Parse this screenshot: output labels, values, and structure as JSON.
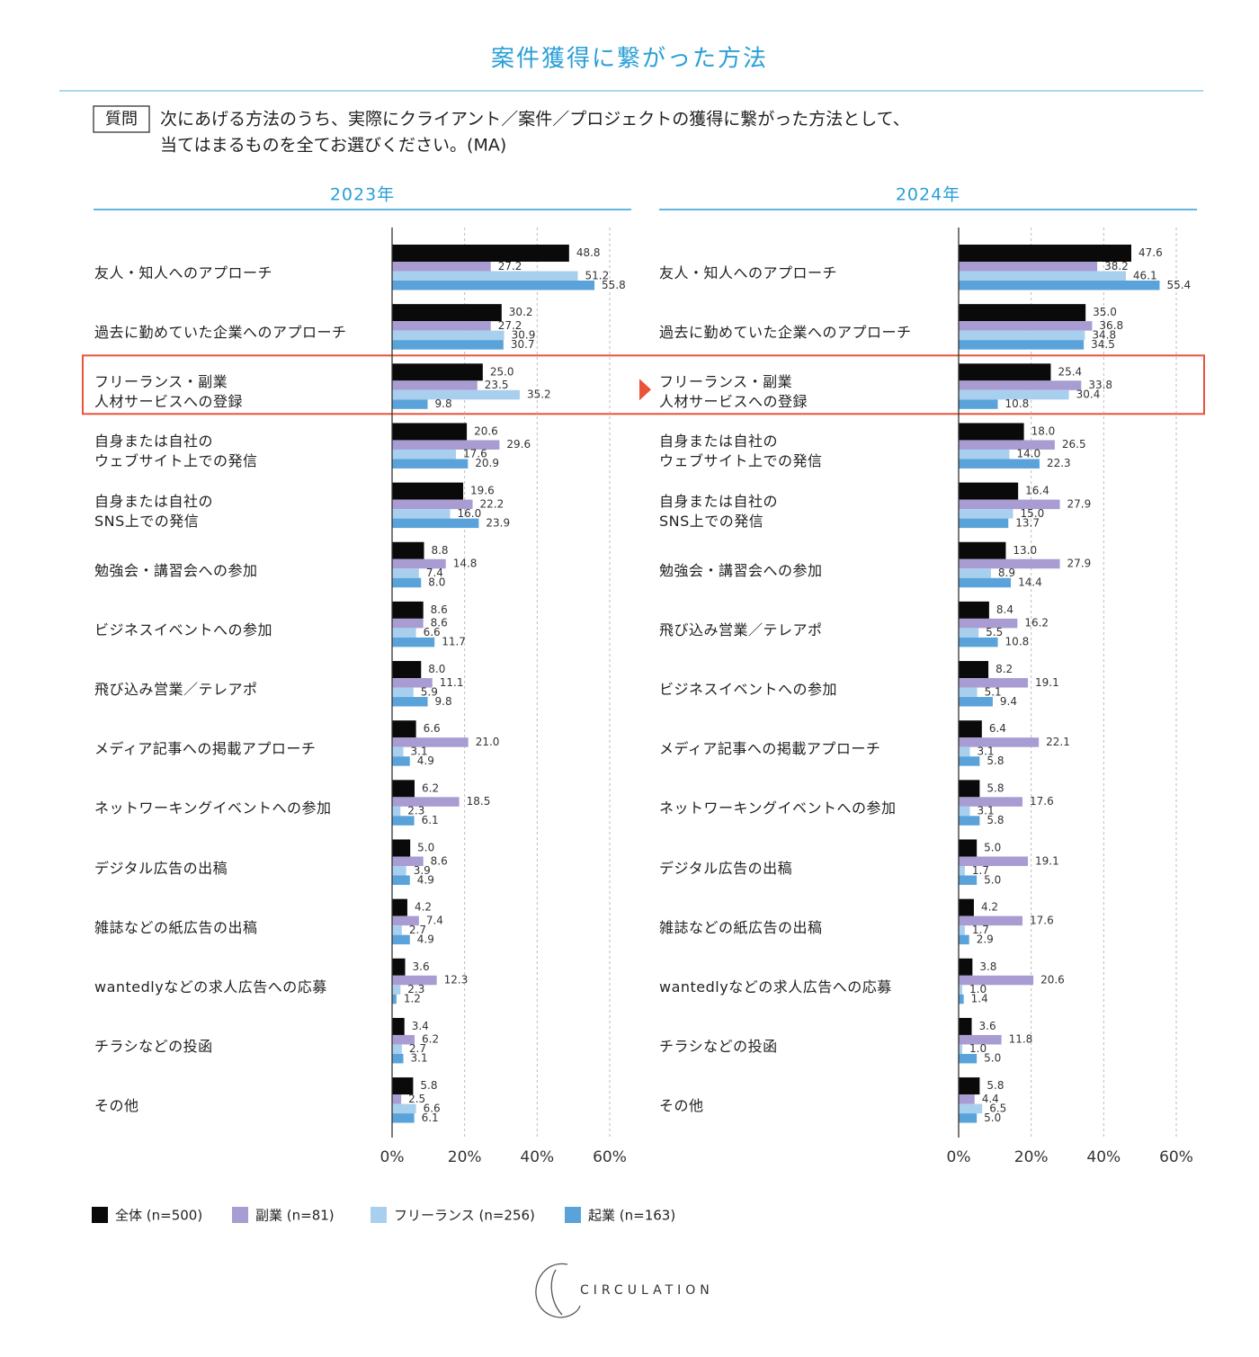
{
  "title": "案件獲得に繋がった方法",
  "question": {
    "label": "質問",
    "lines": [
      "次にあげる方法のうち、実際にクライアント／案件／プロジェクトの獲得に繋がった方法として、",
      "当てはまるものを全てお選びください。(MA)"
    ]
  },
  "highlight_index": 2,
  "logo": "CIRCULATION",
  "chart_data": [
    {
      "type": "bar",
      "orientation": "horizontal",
      "title": "2023年",
      "categories": [
        "友人・知人へのアプローチ",
        "過去に勤めていた企業へのアプローチ",
        "フリーランス・副業\n人材サービスへの登録",
        "自身または自社の\nウェブサイト上での発信",
        "自身または自社の\nSNS上での発信",
        "勉強会・講習会への参加",
        "ビジネスイベントへの参加",
        "飛び込み営業／テレアポ",
        "メディア記事への掲載アプローチ",
        "ネットワーキングイベントへの参加",
        "デジタル広告の出稿",
        "雑誌などの紙広告の出稿",
        "wantedlyなどの求人広告への応募",
        "チラシなどの投函",
        "その他"
      ],
      "series": [
        {
          "name": "全体 (n=500)",
          "color": "#0a0a0a",
          "values": [
            48.8,
            30.2,
            25,
            20.6,
            19.6,
            8.8,
            8.6,
            8,
            6.6,
            6.2,
            5,
            4.2,
            3.6,
            3.4,
            5.8
          ],
          "value_labels": [
            "48.8",
            "30.2",
            "25.0",
            "20.6",
            "19.6",
            "8.8",
            "8.6",
            "8.0",
            "6.6",
            "6.2",
            "5.0",
            "4.2",
            "3.6",
            "3.4",
            "5.8"
          ]
        },
        {
          "name": "副業 (n=81)",
          "color": "#a89cd2",
          "values": [
            27.2,
            27.2,
            23.5,
            29.6,
            22.2,
            14.8,
            8.6,
            11.1,
            21,
            18.5,
            8.6,
            7.4,
            12.3,
            6.2,
            2.5
          ],
          "value_labels": [
            "27.2",
            "27.2",
            "23.5",
            "29.6",
            "22.2",
            "14.8",
            "8.6",
            "11.1",
            "21.0",
            "18.5",
            "8.6",
            "7.4",
            "12.3",
            "6.2",
            "2.5"
          ]
        },
        {
          "name": "フリーランス (n=256)",
          "color": "#a8d0ee",
          "values": [
            51.2,
            30.9,
            35.2,
            17.6,
            16,
            7.4,
            6.6,
            5.9,
            3.1,
            2.3,
            3.9,
            2.7,
            2.3,
            2.7,
            6.6
          ],
          "value_labels": [
            "51.2",
            "30.9",
            "35.2",
            "17.6",
            "16.0",
            "7.4",
            "6.6",
            "5.9",
            "3.1",
            "2.3",
            "3.9",
            "2.7",
            "2.3",
            "2.7",
            "6.6"
          ]
        },
        {
          "name": "起業 (n=163)",
          "color": "#5aa3da",
          "values": [
            55.8,
            30.7,
            9.8,
            20.9,
            23.9,
            8,
            11.7,
            9.8,
            4.9,
            6.1,
            4.9,
            4.9,
            1.2,
            3.1,
            6.1
          ],
          "value_labels": [
            "55.8",
            "30.7",
            "9.8",
            "20.9",
            "23.9",
            "8.0",
            "11.7",
            "9.8",
            "4.9",
            "6.1",
            "4.9",
            "4.9",
            "1.2",
            "3.1",
            "6.1"
          ]
        }
      ],
      "xlim": [
        0,
        60
      ],
      "xticks": [
        {
          "value": 0,
          "label": "0%"
        },
        {
          "value": 20,
          "label": "20%"
        },
        {
          "value": 40,
          "label": "40%"
        },
        {
          "value": 60,
          "label": "60%"
        }
      ],
      "grid": true
    },
    {
      "type": "bar",
      "orientation": "horizontal",
      "title": "2024年",
      "categories": [
        "友人・知人へのアプローチ",
        "過去に勤めていた企業へのアプローチ",
        "フリーランス・副業\n人材サービスへの登録",
        "自身または自社の\nウェブサイト上での発信",
        "自身または自社の\nSNS上での発信",
        "勉強会・講習会への参加",
        "飛び込み営業／テレアポ",
        "ビジネスイベントへの参加",
        "メディア記事への掲載アプローチ",
        "ネットワーキングイベントへの参加",
        "デジタル広告の出稿",
        "雑誌などの紙広告の出稿",
        "wantedlyなどの求人広告への応募",
        "チラシなどの投函",
        "その他"
      ],
      "series": [
        {
          "name": "全体 (n=500)",
          "color": "#0a0a0a",
          "values": [
            47.6,
            35,
            25.4,
            18,
            16.4,
            13,
            8.4,
            8.2,
            6.4,
            5.8,
            5,
            4.2,
            3.8,
            3.6,
            5.8
          ],
          "value_labels": [
            "47.6",
            "35.0",
            "25.4",
            "18.0",
            "16.4",
            "13.0",
            "8.4",
            "8.2",
            "6.4",
            "5.8",
            "5.0",
            "4.2",
            "3.8",
            "3.6",
            "5.8"
          ]
        },
        {
          "name": "副業 (n=81)",
          "color": "#a89cd2",
          "values": [
            38.2,
            36.8,
            33.8,
            26.5,
            27.9,
            27.9,
            16.2,
            19.1,
            22.1,
            17.6,
            19.1,
            17.6,
            20.6,
            11.8,
            4.4
          ],
          "value_labels": [
            "38.2",
            "36.8",
            "33.8",
            "26.5",
            "27.9",
            "27.9",
            "16.2",
            "19.1",
            "22.1",
            "17.6",
            "19.1",
            "17.6",
            "20.6",
            "11.8",
            "4.4"
          ]
        },
        {
          "name": "フリーランス (n=256)",
          "color": "#a8d0ee",
          "values": [
            46.1,
            34.8,
            30.4,
            14,
            15,
            8.9,
            5.5,
            5.1,
            3.1,
            3.1,
            1.7,
            1.7,
            1,
            1,
            6.5
          ],
          "value_labels": [
            "46.1",
            "34.8",
            "30.4",
            "14.0",
            "15.0",
            "8.9",
            "5.5",
            "5.1",
            "3.1",
            "3.1",
            "1.7",
            "1.7",
            "1.0",
            "1.0",
            "6.5"
          ]
        },
        {
          "name": "起業 (n=163)",
          "color": "#5aa3da",
          "values": [
            55.4,
            34.5,
            10.8,
            22.3,
            13.7,
            14.4,
            10.8,
            9.4,
            5.8,
            5.8,
            5,
            2.9,
            1.4,
            5,
            5
          ],
          "value_labels": [
            "55.4",
            "34.5",
            "10.8",
            "22.3",
            "13.7",
            "14.4",
            "10.8",
            "9.4",
            "5.8",
            "5.8",
            "5.0",
            "2.9",
            "1.4",
            "5.0",
            "5.0"
          ]
        }
      ],
      "xlim": [
        0,
        60
      ],
      "xticks": [
        {
          "value": 0,
          "label": "0%"
        },
        {
          "value": 20,
          "label": "20%"
        },
        {
          "value": 40,
          "label": "40%"
        },
        {
          "value": 60,
          "label": "60%"
        }
      ],
      "grid": true
    }
  ]
}
